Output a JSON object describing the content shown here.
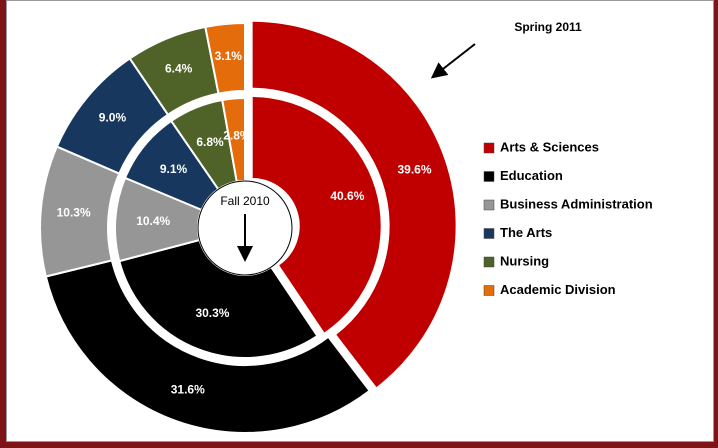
{
  "chart_data": {
    "type": "donut",
    "categories": [
      "Arts & Sciences",
      "Education",
      "Business Administration",
      "The Arts",
      "Nursing",
      "Academic Division"
    ],
    "colors": [
      "#c00000",
      "#000000",
      "#969696",
      "#17375e",
      "#4f6228",
      "#e46c0a"
    ],
    "series": [
      {
        "name": "Fall 2010",
        "values": [
          40.6,
          30.3,
          10.4,
          9.1,
          6.8,
          2.8
        ],
        "value_labels": [
          "40.6%",
          "30.3%",
          "10.4%",
          "9.1%",
          "6.8%",
          "2.8%"
        ]
      },
      {
        "name": "Spring 2011",
        "values": [
          39.6,
          31.6,
          10.3,
          9,
          6.4,
          3.1
        ],
        "value_labels": [
          "39.6%",
          "31.6%",
          "10.3%",
          "9.0%",
          "6.4%",
          "3.1%"
        ]
      }
    ]
  }
}
